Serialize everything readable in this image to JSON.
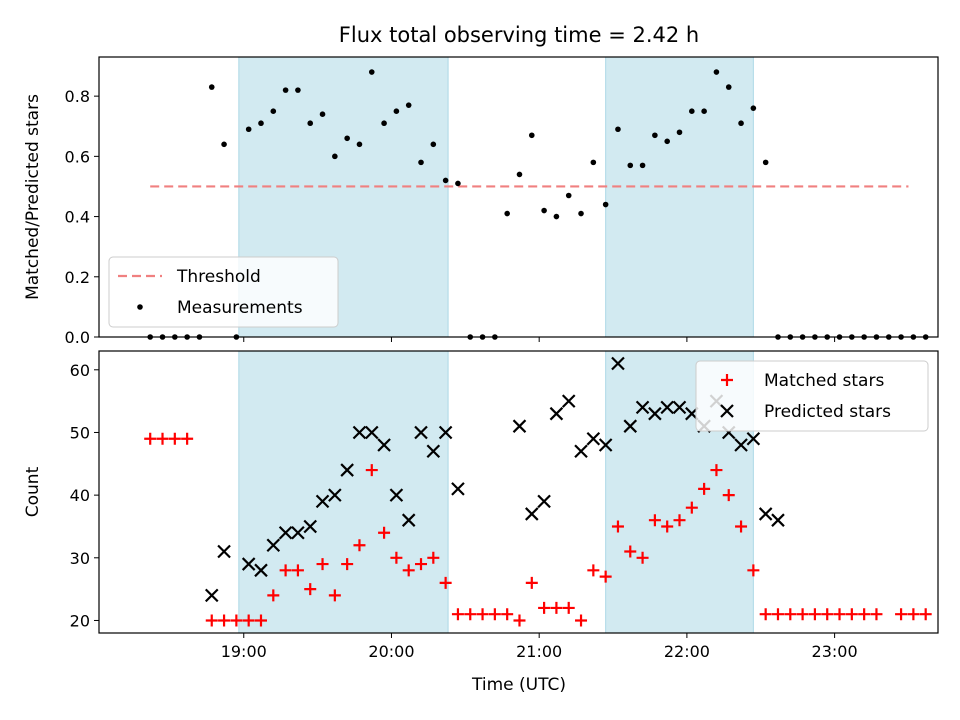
{
  "chart_data": {
    "title": "Flux total observing time = 2.42 h",
    "xlabel": "Time (UTC)",
    "x_ticks": [
      "19:00",
      "20:00",
      "21:00",
      "22:00",
      "23:00"
    ],
    "xlim_hours": [
      18.02,
      23.7
    ],
    "shaded_intervals": [
      [
        "18:58",
        "20:23"
      ],
      [
        "21:27",
        "22:27"
      ]
    ],
    "shade_color": "#add8e6",
    "panels": [
      {
        "type": "scatter",
        "ylabel": "Matched/Predicted stars",
        "ylim": [
          0,
          0.93
        ],
        "y_ticks": [
          "0.0",
          "0.2",
          "0.4",
          "0.6",
          "0.8"
        ],
        "legend_position": "lower-left",
        "threshold": {
          "name": "Threshold",
          "y": 0.5,
          "x_range": [
            "18:22",
            "23:30"
          ],
          "color": "#f08080"
        },
        "series": [
          {
            "name": "Measurements",
            "color": "#000000",
            "marker": "dot",
            "points": [
              [
                "18:22",
                0
              ],
              [
                "18:27",
                0
              ],
              [
                "18:32",
                0
              ],
              [
                "18:37",
                0
              ],
              [
                "18:42",
                0
              ],
              [
                "18:47",
                0.83
              ],
              [
                "18:52",
                0.64
              ],
              [
                "18:57",
                0
              ],
              [
                "19:02",
                0.69
              ],
              [
                "19:07",
                0.71
              ],
              [
                "19:12",
                0.75
              ],
              [
                "19:17",
                0.82
              ],
              [
                "19:22",
                0.82
              ],
              [
                "19:27",
                0.71
              ],
              [
                "19:32",
                0.74
              ],
              [
                "19:37",
                0.6
              ],
              [
                "19:42",
                0.66
              ],
              [
                "19:47",
                0.64
              ],
              [
                "19:52",
                0.88
              ],
              [
                "19:57",
                0.71
              ],
              [
                "20:02",
                0.75
              ],
              [
                "20:07",
                0.77
              ],
              [
                "20:12",
                0.58
              ],
              [
                "20:17",
                0.64
              ],
              [
                "20:22",
                0.52
              ],
              [
                "20:27",
                0.51
              ],
              [
                "20:32",
                0
              ],
              [
                "20:37",
                0
              ],
              [
                "20:42",
                0
              ],
              [
                "20:47",
                0.41
              ],
              [
                "20:52",
                0.54
              ],
              [
                "20:57",
                0.67
              ],
              [
                "21:02",
                0.42
              ],
              [
                "21:07",
                0.4
              ],
              [
                "21:12",
                0.47
              ],
              [
                "21:17",
                0.41
              ],
              [
                "21:22",
                0.58
              ],
              [
                "21:27",
                0.44
              ],
              [
                "21:32",
                0.69
              ],
              [
                "21:37",
                0.57
              ],
              [
                "21:42",
                0.57
              ],
              [
                "21:47",
                0.67
              ],
              [
                "21:52",
                0.65
              ],
              [
                "21:57",
                0.68
              ],
              [
                "22:02",
                0.75
              ],
              [
                "22:07",
                0.75
              ],
              [
                "22:12",
                0.88
              ],
              [
                "22:17",
                0.83
              ],
              [
                "22:22",
                0.71
              ],
              [
                "22:27",
                0.76
              ],
              [
                "22:32",
                0.58
              ],
              [
                "22:37",
                0
              ],
              [
                "22:42",
                0
              ],
              [
                "22:47",
                0
              ],
              [
                "22:52",
                0
              ],
              [
                "22:57",
                0
              ],
              [
                "23:02",
                0
              ],
              [
                "23:07",
                0
              ],
              [
                "23:12",
                0
              ],
              [
                "23:17",
                0
              ],
              [
                "23:22",
                0
              ],
              [
                "23:27",
                0
              ],
              [
                "23:32",
                0
              ],
              [
                "23:37",
                0
              ]
            ]
          }
        ]
      },
      {
        "type": "scatter",
        "ylabel": "Count",
        "ylim": [
          18,
          63
        ],
        "y_ticks": [
          "20",
          "30",
          "40",
          "50",
          "60"
        ],
        "legend_position": "upper-right",
        "series": [
          {
            "name": "Matched stars",
            "color": "#ff0000",
            "marker": "plus",
            "points": [
              [
                "18:22",
                49
              ],
              [
                "18:27",
                49
              ],
              [
                "18:32",
                49
              ],
              [
                "18:37",
                49
              ],
              [
                "18:47",
                20
              ],
              [
                "18:52",
                20
              ],
              [
                "18:57",
                20
              ],
              [
                "19:02",
                20
              ],
              [
                "19:07",
                20
              ],
              [
                "19:12",
                24
              ],
              [
                "19:17",
                28
              ],
              [
                "19:22",
                28
              ],
              [
                "19:27",
                25
              ],
              [
                "19:32",
                29
              ],
              [
                "19:37",
                24
              ],
              [
                "19:42",
                29
              ],
              [
                "19:47",
                32
              ],
              [
                "19:52",
                44
              ],
              [
                "19:57",
                34
              ],
              [
                "20:02",
                30
              ],
              [
                "20:07",
                28
              ],
              [
                "20:12",
                29
              ],
              [
                "20:17",
                30
              ],
              [
                "20:22",
                26
              ],
              [
                "20:27",
                21
              ],
              [
                "20:32",
                21
              ],
              [
                "20:37",
                21
              ],
              [
                "20:42",
                21
              ],
              [
                "20:47",
                21
              ],
              [
                "20:52",
                20
              ],
              [
                "20:57",
                26
              ],
              [
                "21:02",
                22
              ],
              [
                "21:07",
                22
              ],
              [
                "21:12",
                22
              ],
              [
                "21:17",
                20
              ],
              [
                "21:22",
                28
              ],
              [
                "21:27",
                27
              ],
              [
                "21:32",
                35
              ],
              [
                "21:37",
                31
              ],
              [
                "21:42",
                30
              ],
              [
                "21:47",
                36
              ],
              [
                "21:52",
                35
              ],
              [
                "21:57",
                36
              ],
              [
                "22:02",
                38
              ],
              [
                "22:07",
                41
              ],
              [
                "22:12",
                44
              ],
              [
                "22:17",
                40
              ],
              [
                "22:22",
                35
              ],
              [
                "22:27",
                28
              ],
              [
                "22:32",
                21
              ],
              [
                "22:37",
                21
              ],
              [
                "22:42",
                21
              ],
              [
                "22:47",
                21
              ],
              [
                "22:52",
                21
              ],
              [
                "22:57",
                21
              ],
              [
                "23:02",
                21
              ],
              [
                "23:07",
                21
              ],
              [
                "23:12",
                21
              ],
              [
                "23:17",
                21
              ],
              [
                "23:27",
                21
              ],
              [
                "23:32",
                21
              ],
              [
                "23:37",
                21
              ]
            ]
          },
          {
            "name": "Predicted stars",
            "color": "#000000",
            "marker": "x",
            "points": [
              [
                "18:47",
                24
              ],
              [
                "18:52",
                31
              ],
              [
                "19:02",
                29
              ],
              [
                "19:07",
                28
              ],
              [
                "19:12",
                32
              ],
              [
                "19:17",
                34
              ],
              [
                "19:22",
                34
              ],
              [
                "19:27",
                35
              ],
              [
                "19:32",
                39
              ],
              [
                "19:37",
                40
              ],
              [
                "19:42",
                44
              ],
              [
                "19:47",
                50
              ],
              [
                "19:52",
                50
              ],
              [
                "19:57",
                48
              ],
              [
                "20:02",
                40
              ],
              [
                "20:07",
                36
              ],
              [
                "20:12",
                50
              ],
              [
                "20:17",
                47
              ],
              [
                "20:22",
                50
              ],
              [
                "20:27",
                41
              ],
              [
                "20:52",
                51
              ],
              [
                "20:57",
                37
              ],
              [
                "21:02",
                39
              ],
              [
                "21:07",
                53
              ],
              [
                "21:12",
                55
              ],
              [
                "21:17",
                47
              ],
              [
                "21:22",
                49
              ],
              [
                "21:27",
                48
              ],
              [
                "21:32",
                61
              ],
              [
                "21:37",
                51
              ],
              [
                "21:42",
                54
              ],
              [
                "21:47",
                53
              ],
              [
                "21:52",
                54
              ],
              [
                "21:57",
                54
              ],
              [
                "22:02",
                53
              ],
              [
                "22:07",
                51
              ],
              [
                "22:12",
                55
              ],
              [
                "22:17",
                50
              ],
              [
                "22:22",
                48
              ],
              [
                "22:27",
                49
              ],
              [
                "22:32",
                37
              ],
              [
                "22:37",
                36
              ]
            ]
          }
        ]
      }
    ]
  }
}
